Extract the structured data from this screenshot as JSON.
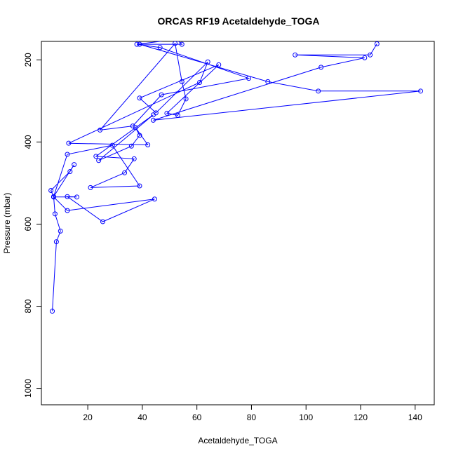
{
  "chart_data": {
    "type": "line",
    "title": "ORCAS RF19 Acetaldehyde_TOGA",
    "xlabel": "Acetaldehyde_TOGA",
    "ylabel": "Pressure (mbar)",
    "xlim": [
      3,
      147
    ],
    "ylim": [
      1040,
      155
    ],
    "y_reversed": true,
    "x_ticks": [
      20,
      40,
      60,
      80,
      100,
      120,
      140
    ],
    "y_ticks": [
      200,
      400,
      600,
      800,
      1000
    ],
    "grid": false,
    "marker": "open-circle",
    "colors": {
      "series": "#0000ff"
    },
    "series": [
      {
        "x": [
          7,
          8.5,
          10,
          8,
          7.5,
          12.5,
          44.5,
          25.5,
          12.5,
          16,
          7.5,
          6.5,
          13.5,
          15,
          7.5,
          12.5,
          29,
          39,
          21,
          33.5,
          37,
          23,
          44,
          24,
          36,
          39,
          37.5,
          42,
          13,
          61,
          64,
          45,
          39,
          68,
          49,
          53,
          56,
          54.5,
          52,
          24.5,
          36.5,
          47,
          79,
          46.5,
          38,
          52.5,
          54.5,
          39,
          86,
          104.5,
          142,
          44,
          105.5,
          121.5,
          96,
          123.5,
          126
        ],
        "y": [
          812,
          643,
          617,
          575,
          534,
          567,
          539,
          594,
          533,
          534,
          534,
          518,
          472,
          455,
          533,
          430,
          408,
          507,
          511,
          475,
          441,
          435,
          334,
          445,
          410,
          384,
          365,
          407,
          403,
          255,
          205,
          329,
          293,
          212,
          330,
          335,
          295,
          253,
          160,
          371,
          361,
          285,
          245,
          170,
          162,
          150,
          162,
          162,
          253,
          276,
          276,
          347,
          218,
          195,
          188,
          188,
          161
        ]
      }
    ]
  }
}
